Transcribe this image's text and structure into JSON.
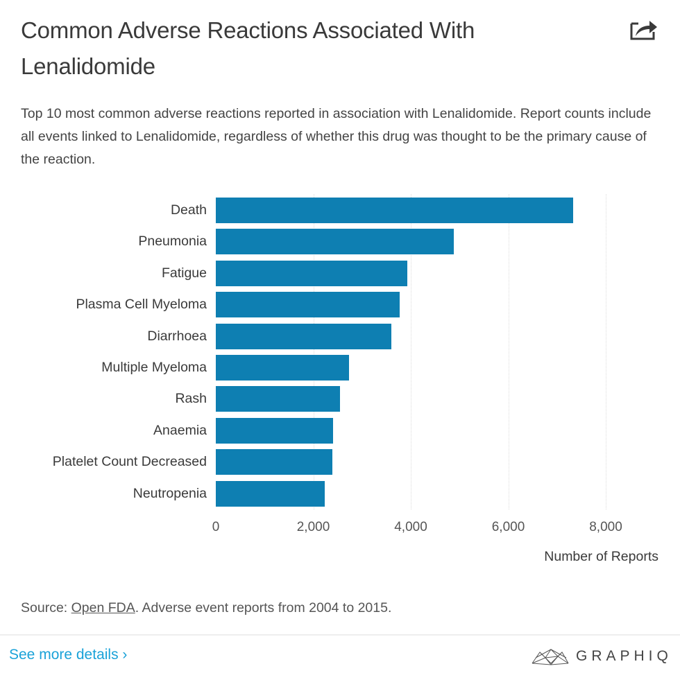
{
  "header": {
    "title": "Common Adverse Reactions Associated With Lenalidomide",
    "share_icon": "share-icon",
    "subtitle": "Top 10 most common adverse reactions reported in association with Lenalidomide. Report counts include all events linked to Lenalidomide, regardless of whether this drug was thought to be the primary cause of the reaction."
  },
  "chart_data": {
    "type": "bar",
    "orientation": "horizontal",
    "title": "Common Adverse Reactions Associated With Lenalidomide",
    "subtitle": "Top 10 most common adverse reactions reported in association with Lenalidomide. Report counts include all events linked to Lenalidomide, regardless of whether this drug was thought to be the primary cause of the reaction.",
    "categories": [
      "Death",
      "Pneumonia",
      "Fatigue",
      "Plasma Cell Myeloma",
      "Diarrhoea",
      "Multiple Myeloma",
      "Rash",
      "Anaemia",
      "Platelet Count Decreased",
      "Neutropenia"
    ],
    "values": [
      7330,
      4880,
      3930,
      3770,
      3600,
      2730,
      2550,
      2410,
      2390,
      2230
    ],
    "xlabel": "Number of Reports",
    "ylabel": "",
    "xlim": [
      0,
      8000
    ],
    "xticks": [
      0,
      2000,
      4000,
      6000,
      8000
    ],
    "xtick_labels": [
      "0",
      "2,000",
      "4,000",
      "6,000",
      "8,000"
    ],
    "grid": "vertical dotted",
    "legend": "none",
    "bar_color": "#0e7fb2"
  },
  "footer": {
    "source_prefix": "Source: ",
    "source_link": "Open FDA",
    "source_suffix": ". Adverse event reports from 2004 to 2015.",
    "see_more": "See more details ›",
    "brand": "GRAPHIQ"
  },
  "colors": {
    "bar": "#0e7fb2",
    "link": "#1aa2d8",
    "text": "#3a3a3a"
  }
}
